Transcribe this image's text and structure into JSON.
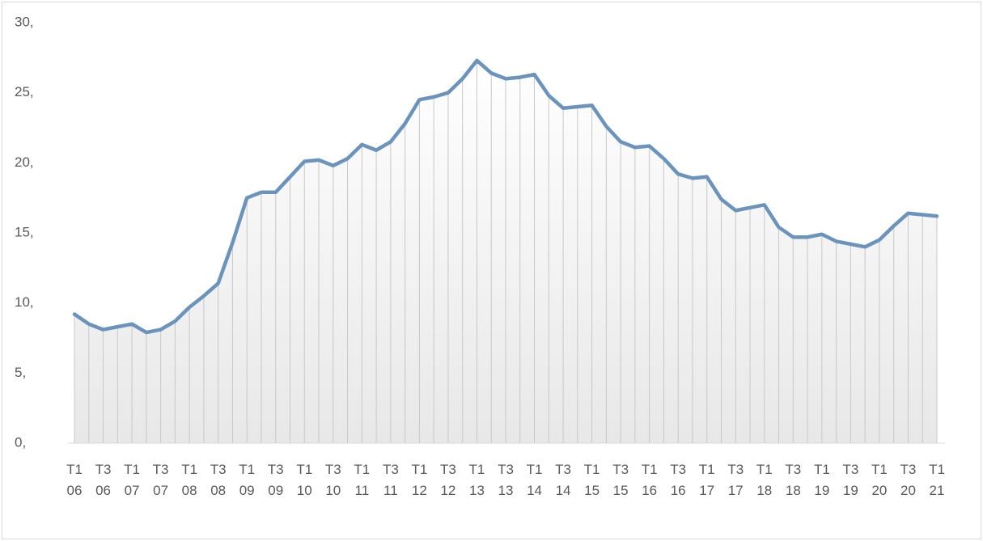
{
  "chart_data": {
    "type": "line",
    "categories": [
      "T1 06",
      null,
      "T3 06",
      null,
      "T1 07",
      null,
      "T3 07",
      null,
      "T1 08",
      null,
      "T3 08",
      null,
      "T1 09",
      null,
      "T3 09",
      null,
      "T1 10",
      null,
      "T3 10",
      null,
      "T1 11",
      null,
      "T3 11",
      null,
      "T1 12",
      null,
      "T3 12",
      null,
      "T1 13",
      null,
      "T3 13",
      null,
      "T1 14",
      null,
      "T3 14",
      null,
      "T1 15",
      null,
      "T3 15",
      null,
      "T1 16",
      null,
      "T3 16",
      null,
      "T1 17",
      null,
      "T3 17",
      null,
      "T1 18",
      null,
      "T3 18",
      null,
      "T1 19",
      null,
      "T3 19",
      null,
      "T1 20",
      null,
      "T3 20",
      null,
      "T1 21"
    ],
    "values": [
      9.2,
      8.5,
      8.1,
      8.3,
      8.5,
      7.9,
      8.1,
      8.7,
      9.7,
      10.5,
      11.4,
      14.3,
      17.5,
      17.9,
      17.9,
      19.0,
      20.1,
      20.2,
      19.8,
      20.3,
      21.3,
      20.9,
      21.5,
      22.8,
      24.5,
      24.7,
      25.0,
      26.0,
      27.3,
      26.4,
      26.0,
      26.1,
      26.3,
      24.8,
      23.9,
      24.0,
      24.1,
      22.6,
      21.5,
      21.1,
      21.2,
      20.3,
      19.2,
      18.9,
      19.0,
      17.4,
      16.6,
      16.8,
      17.0,
      15.4,
      14.7,
      14.7,
      14.9,
      14.4,
      14.2,
      14.0,
      14.5,
      15.5,
      16.4,
      16.3,
      16.2
    ],
    "color": "#6a93bd",
    "ylim": [
      0,
      30
    ],
    "yticks": [
      {
        "value": 0,
        "label": "0,"
      },
      {
        "value": 5,
        "label": "5,"
      },
      {
        "value": 10,
        "label": "10,"
      },
      {
        "value": 15,
        "label": "15,"
      },
      {
        "value": 20,
        "label": "20,"
      },
      {
        "value": 25,
        "label": "25,"
      },
      {
        "value": 30,
        "label": "30,"
      }
    ]
  }
}
